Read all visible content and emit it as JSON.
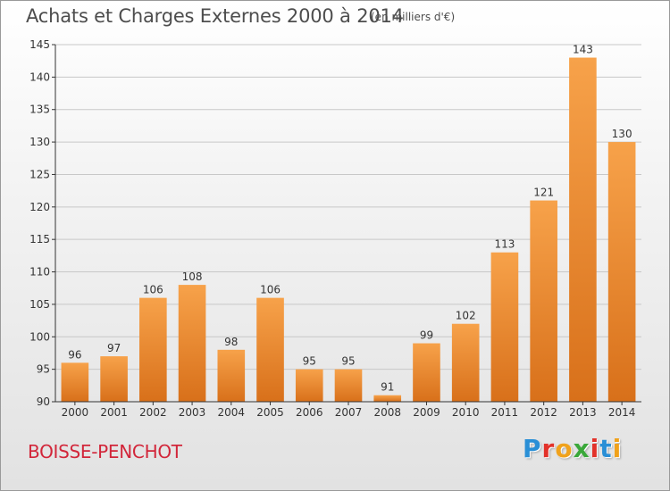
{
  "header": {
    "title": "Achats et Charges Externes 2000 à 2014",
    "unit": "(en milliers d'€)"
  },
  "footer": {
    "commune": "BOISSE-PENCHOT",
    "logo_text": "Proxiti",
    "logo_colors": [
      "#2a8fd6",
      "#e2322a",
      "#f0a21c",
      "#3aa83a",
      "#e2322a",
      "#2a8fd6",
      "#f0a21c"
    ]
  },
  "colors": {
    "bar_light": "#f7a24a",
    "bar_dark": "#d8701a",
    "axis": "#333333",
    "grid": "#c8c8c8",
    "title": "#4d4d4d",
    "commune": "#d2263a"
  },
  "chart_data": {
    "type": "bar",
    "title": "Achats et Charges Externes 2000 à 2014",
    "subtitle": "(en milliers d'€)",
    "categories": [
      "2000",
      "2001",
      "2002",
      "2003",
      "2004",
      "2005",
      "2006",
      "2007",
      "2008",
      "2009",
      "2010",
      "2011",
      "2012",
      "2013",
      "2014"
    ],
    "values": [
      96,
      97,
      106,
      108,
      98,
      106,
      95,
      95,
      91,
      99,
      102,
      113,
      121,
      143,
      130
    ],
    "ylim": [
      90,
      145
    ],
    "yticks": [
      90,
      95,
      100,
      105,
      110,
      115,
      120,
      125,
      130,
      135,
      140,
      145
    ],
    "grid": true
  }
}
